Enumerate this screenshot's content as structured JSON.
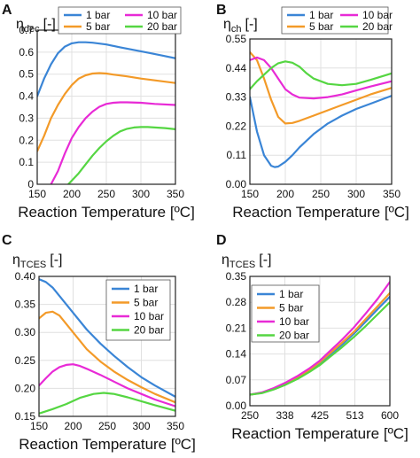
{
  "chart_data": [
    {
      "panel": "A",
      "type": "line",
      "ylabel_main": "η",
      "ylabel_sub": "dec",
      "ylabel_unit": "[-]",
      "xlabel": "Reaction Temperature [ºC]",
      "xlim": [
        150,
        350
      ],
      "ylim": [
        0,
        0.7
      ],
      "xticks": [
        "150",
        "200",
        "250",
        "300",
        "350"
      ],
      "yticks": [
        "0",
        "0.1",
        "0.2",
        "0.3",
        "0.4",
        "0.5",
        "0.6",
        "0.7"
      ],
      "legend_position": "top, two columns",
      "legend": [
        "1 bar",
        "10 bar",
        "5 bar",
        "20 bar"
      ],
      "series": [
        {
          "name": "1 bar",
          "color": "#3a85d6",
          "x": [
            150,
            160,
            170,
            180,
            190,
            200,
            210,
            220,
            230,
            250,
            270,
            290,
            310,
            330,
            350
          ],
          "y": [
            0.4,
            0.48,
            0.545,
            0.595,
            0.625,
            0.64,
            0.645,
            0.645,
            0.643,
            0.635,
            0.622,
            0.61,
            0.598,
            0.585,
            0.572
          ]
        },
        {
          "name": "5 bar",
          "color": "#f39a28",
          "x": [
            150,
            160,
            170,
            180,
            190,
            200,
            210,
            220,
            230,
            240,
            250,
            260,
            280,
            300,
            320,
            350
          ],
          "y": [
            0.15,
            0.22,
            0.3,
            0.36,
            0.41,
            0.45,
            0.48,
            0.495,
            0.503,
            0.505,
            0.503,
            0.498,
            0.49,
            0.48,
            0.472,
            0.46
          ]
        },
        {
          "name": "10 bar",
          "color": "#e82ad6",
          "x": [
            170,
            180,
            190,
            200,
            210,
            220,
            230,
            240,
            250,
            260,
            270,
            280,
            300,
            320,
            350
          ],
          "y": [
            0.0,
            0.06,
            0.14,
            0.21,
            0.26,
            0.3,
            0.33,
            0.352,
            0.365,
            0.37,
            0.372,
            0.372,
            0.37,
            0.365,
            0.36
          ]
        },
        {
          "name": "20 bar",
          "color": "#55d642",
          "x": [
            195,
            210,
            220,
            230,
            240,
            250,
            260,
            270,
            280,
            290,
            300,
            310,
            320,
            335,
            350
          ],
          "y": [
            0.0,
            0.05,
            0.09,
            0.13,
            0.165,
            0.195,
            0.22,
            0.24,
            0.252,
            0.258,
            0.26,
            0.26,
            0.258,
            0.255,
            0.25
          ]
        }
      ]
    },
    {
      "panel": "B",
      "type": "line",
      "ylabel_main": "η",
      "ylabel_sub": "ch",
      "ylabel_unit": "[-]",
      "xlabel": "Reaction Temperature [ºC]",
      "xlim": [
        150,
        350
      ],
      "ylim": [
        0,
        0.55
      ],
      "xticks": [
        "150",
        "200",
        "250",
        "300",
        "350"
      ],
      "yticks": [
        "0.00",
        "0.11",
        "0.22",
        "0.33",
        "0.44",
        "0.55"
      ],
      "legend_position": "top, two columns",
      "legend": [
        "1 bar",
        "10 bar",
        "5 bar",
        "20 bar"
      ],
      "series": [
        {
          "name": "1 bar",
          "color": "#3a85d6",
          "x": [
            150,
            160,
            170,
            180,
            185,
            190,
            200,
            210,
            220,
            240,
            260,
            280,
            300,
            320,
            350
          ],
          "y": [
            0.33,
            0.2,
            0.11,
            0.07,
            0.065,
            0.067,
            0.085,
            0.11,
            0.14,
            0.19,
            0.23,
            0.26,
            0.285,
            0.305,
            0.335
          ]
        },
        {
          "name": "5 bar",
          "color": "#f39a28",
          "x": [
            150,
            160,
            170,
            180,
            190,
            200,
            210,
            220,
            240,
            260,
            280,
            300,
            320,
            350
          ],
          "y": [
            0.5,
            0.47,
            0.4,
            0.32,
            0.255,
            0.23,
            0.232,
            0.24,
            0.26,
            0.28,
            0.3,
            0.32,
            0.34,
            0.365
          ]
        },
        {
          "name": "10 bar",
          "color": "#e82ad6",
          "x": [
            150,
            160,
            170,
            180,
            190,
            200,
            210,
            220,
            240,
            260,
            280,
            300,
            320,
            350
          ],
          "y": [
            0.47,
            0.48,
            0.47,
            0.44,
            0.4,
            0.36,
            0.34,
            0.328,
            0.325,
            0.33,
            0.34,
            0.355,
            0.37,
            0.39
          ]
        },
        {
          "name": "20 bar",
          "color": "#55d642",
          "x": [
            150,
            160,
            170,
            180,
            190,
            200,
            210,
            220,
            230,
            240,
            260,
            280,
            300,
            320,
            350
          ],
          "y": [
            0.36,
            0.39,
            0.415,
            0.44,
            0.458,
            0.465,
            0.46,
            0.445,
            0.42,
            0.4,
            0.38,
            0.375,
            0.38,
            0.395,
            0.42
          ]
        }
      ]
    },
    {
      "panel": "C",
      "type": "line",
      "ylabel_main": "η",
      "ylabel_sub": "TCES",
      "ylabel_unit": "[-]",
      "xlabel": "Reaction Temperature [ºC]",
      "xlim": [
        150,
        350
      ],
      "ylim": [
        0.15,
        0.4
      ],
      "xticks": [
        "150",
        "200",
        "250",
        "300",
        "350"
      ],
      "yticks": [
        "0.15",
        "0.20",
        "0.25",
        "0.30",
        "0.35",
        "0.40"
      ],
      "legend_position": "right",
      "legend": [
        "1 bar",
        "5 bar",
        "10 bar",
        "20 bar"
      ],
      "series": [
        {
          "name": "1 bar",
          "color": "#3a85d6",
          "x": [
            150,
            160,
            170,
            180,
            190,
            200,
            220,
            240,
            260,
            280,
            300,
            320,
            350
          ],
          "y": [
            0.395,
            0.39,
            0.38,
            0.365,
            0.35,
            0.335,
            0.305,
            0.28,
            0.258,
            0.238,
            0.22,
            0.205,
            0.185
          ]
        },
        {
          "name": "5 bar",
          "color": "#f39a28",
          "x": [
            150,
            160,
            170,
            180,
            190,
            200,
            210,
            220,
            240,
            260,
            280,
            300,
            320,
            350
          ],
          "y": [
            0.325,
            0.335,
            0.337,
            0.33,
            0.315,
            0.3,
            0.285,
            0.27,
            0.248,
            0.23,
            0.215,
            0.202,
            0.19,
            0.175
          ]
        },
        {
          "name": "10 bar",
          "color": "#e82ad6",
          "x": [
            150,
            160,
            170,
            180,
            190,
            200,
            210,
            220,
            240,
            260,
            280,
            300,
            320,
            350
          ],
          "y": [
            0.205,
            0.218,
            0.23,
            0.238,
            0.242,
            0.243,
            0.24,
            0.235,
            0.224,
            0.212,
            0.2,
            0.19,
            0.18,
            0.168
          ]
        },
        {
          "name": "20 bar",
          "color": "#55d642",
          "x": [
            150,
            170,
            190,
            210,
            230,
            245,
            260,
            280,
            300,
            320,
            350
          ],
          "y": [
            0.155,
            0.163,
            0.172,
            0.183,
            0.19,
            0.192,
            0.19,
            0.184,
            0.177,
            0.17,
            0.16
          ]
        }
      ]
    },
    {
      "panel": "D",
      "type": "line",
      "ylabel_main": "η",
      "ylabel_sub": "TCES",
      "ylabel_unit": "[-]",
      "xlabel": "Reaction Temperature [ºC]",
      "xlim": [
        250,
        600
      ],
      "ylim": [
        0,
        0.35
      ],
      "xticks": [
        "250",
        "338",
        "425",
        "513",
        "600"
      ],
      "yticks": [
        "0.00",
        "0.07",
        "0.14",
        "0.21",
        "0.28",
        "0.35"
      ],
      "legend_position": "top-left",
      "legend": [
        "1 bar",
        "5 bar",
        "10 bar",
        "20 bar"
      ],
      "series": [
        {
          "name": "1 bar",
          "color": "#3a85d6",
          "x": [
            250,
            280,
            310,
            340,
            370,
            400,
            425,
            450,
            480,
            510,
            540,
            570,
            600
          ],
          "y": [
            0.03,
            0.035,
            0.045,
            0.058,
            0.075,
            0.095,
            0.115,
            0.138,
            0.165,
            0.195,
            0.228,
            0.262,
            0.295
          ]
        },
        {
          "name": "5 bar",
          "color": "#f39a28",
          "x": [
            250,
            280,
            310,
            340,
            370,
            400,
            425,
            450,
            480,
            510,
            540,
            570,
            600
          ],
          "y": [
            0.03,
            0.035,
            0.046,
            0.06,
            0.077,
            0.098,
            0.118,
            0.142,
            0.17,
            0.2,
            0.235,
            0.27,
            0.305
          ]
        },
        {
          "name": "10 bar",
          "color": "#e82ad6",
          "x": [
            250,
            280,
            310,
            340,
            370,
            400,
            425,
            450,
            480,
            510,
            540,
            570,
            600
          ],
          "y": [
            0.03,
            0.036,
            0.048,
            0.063,
            0.081,
            0.102,
            0.122,
            0.148,
            0.178,
            0.212,
            0.25,
            0.29,
            0.335
          ]
        },
        {
          "name": "20 bar",
          "color": "#55d642",
          "x": [
            250,
            280,
            310,
            340,
            370,
            400,
            425,
            450,
            480,
            510,
            540,
            570,
            600
          ],
          "y": [
            0.03,
            0.034,
            0.044,
            0.057,
            0.073,
            0.092,
            0.11,
            0.132,
            0.158,
            0.186,
            0.216,
            0.248,
            0.28
          ]
        }
      ]
    }
  ]
}
